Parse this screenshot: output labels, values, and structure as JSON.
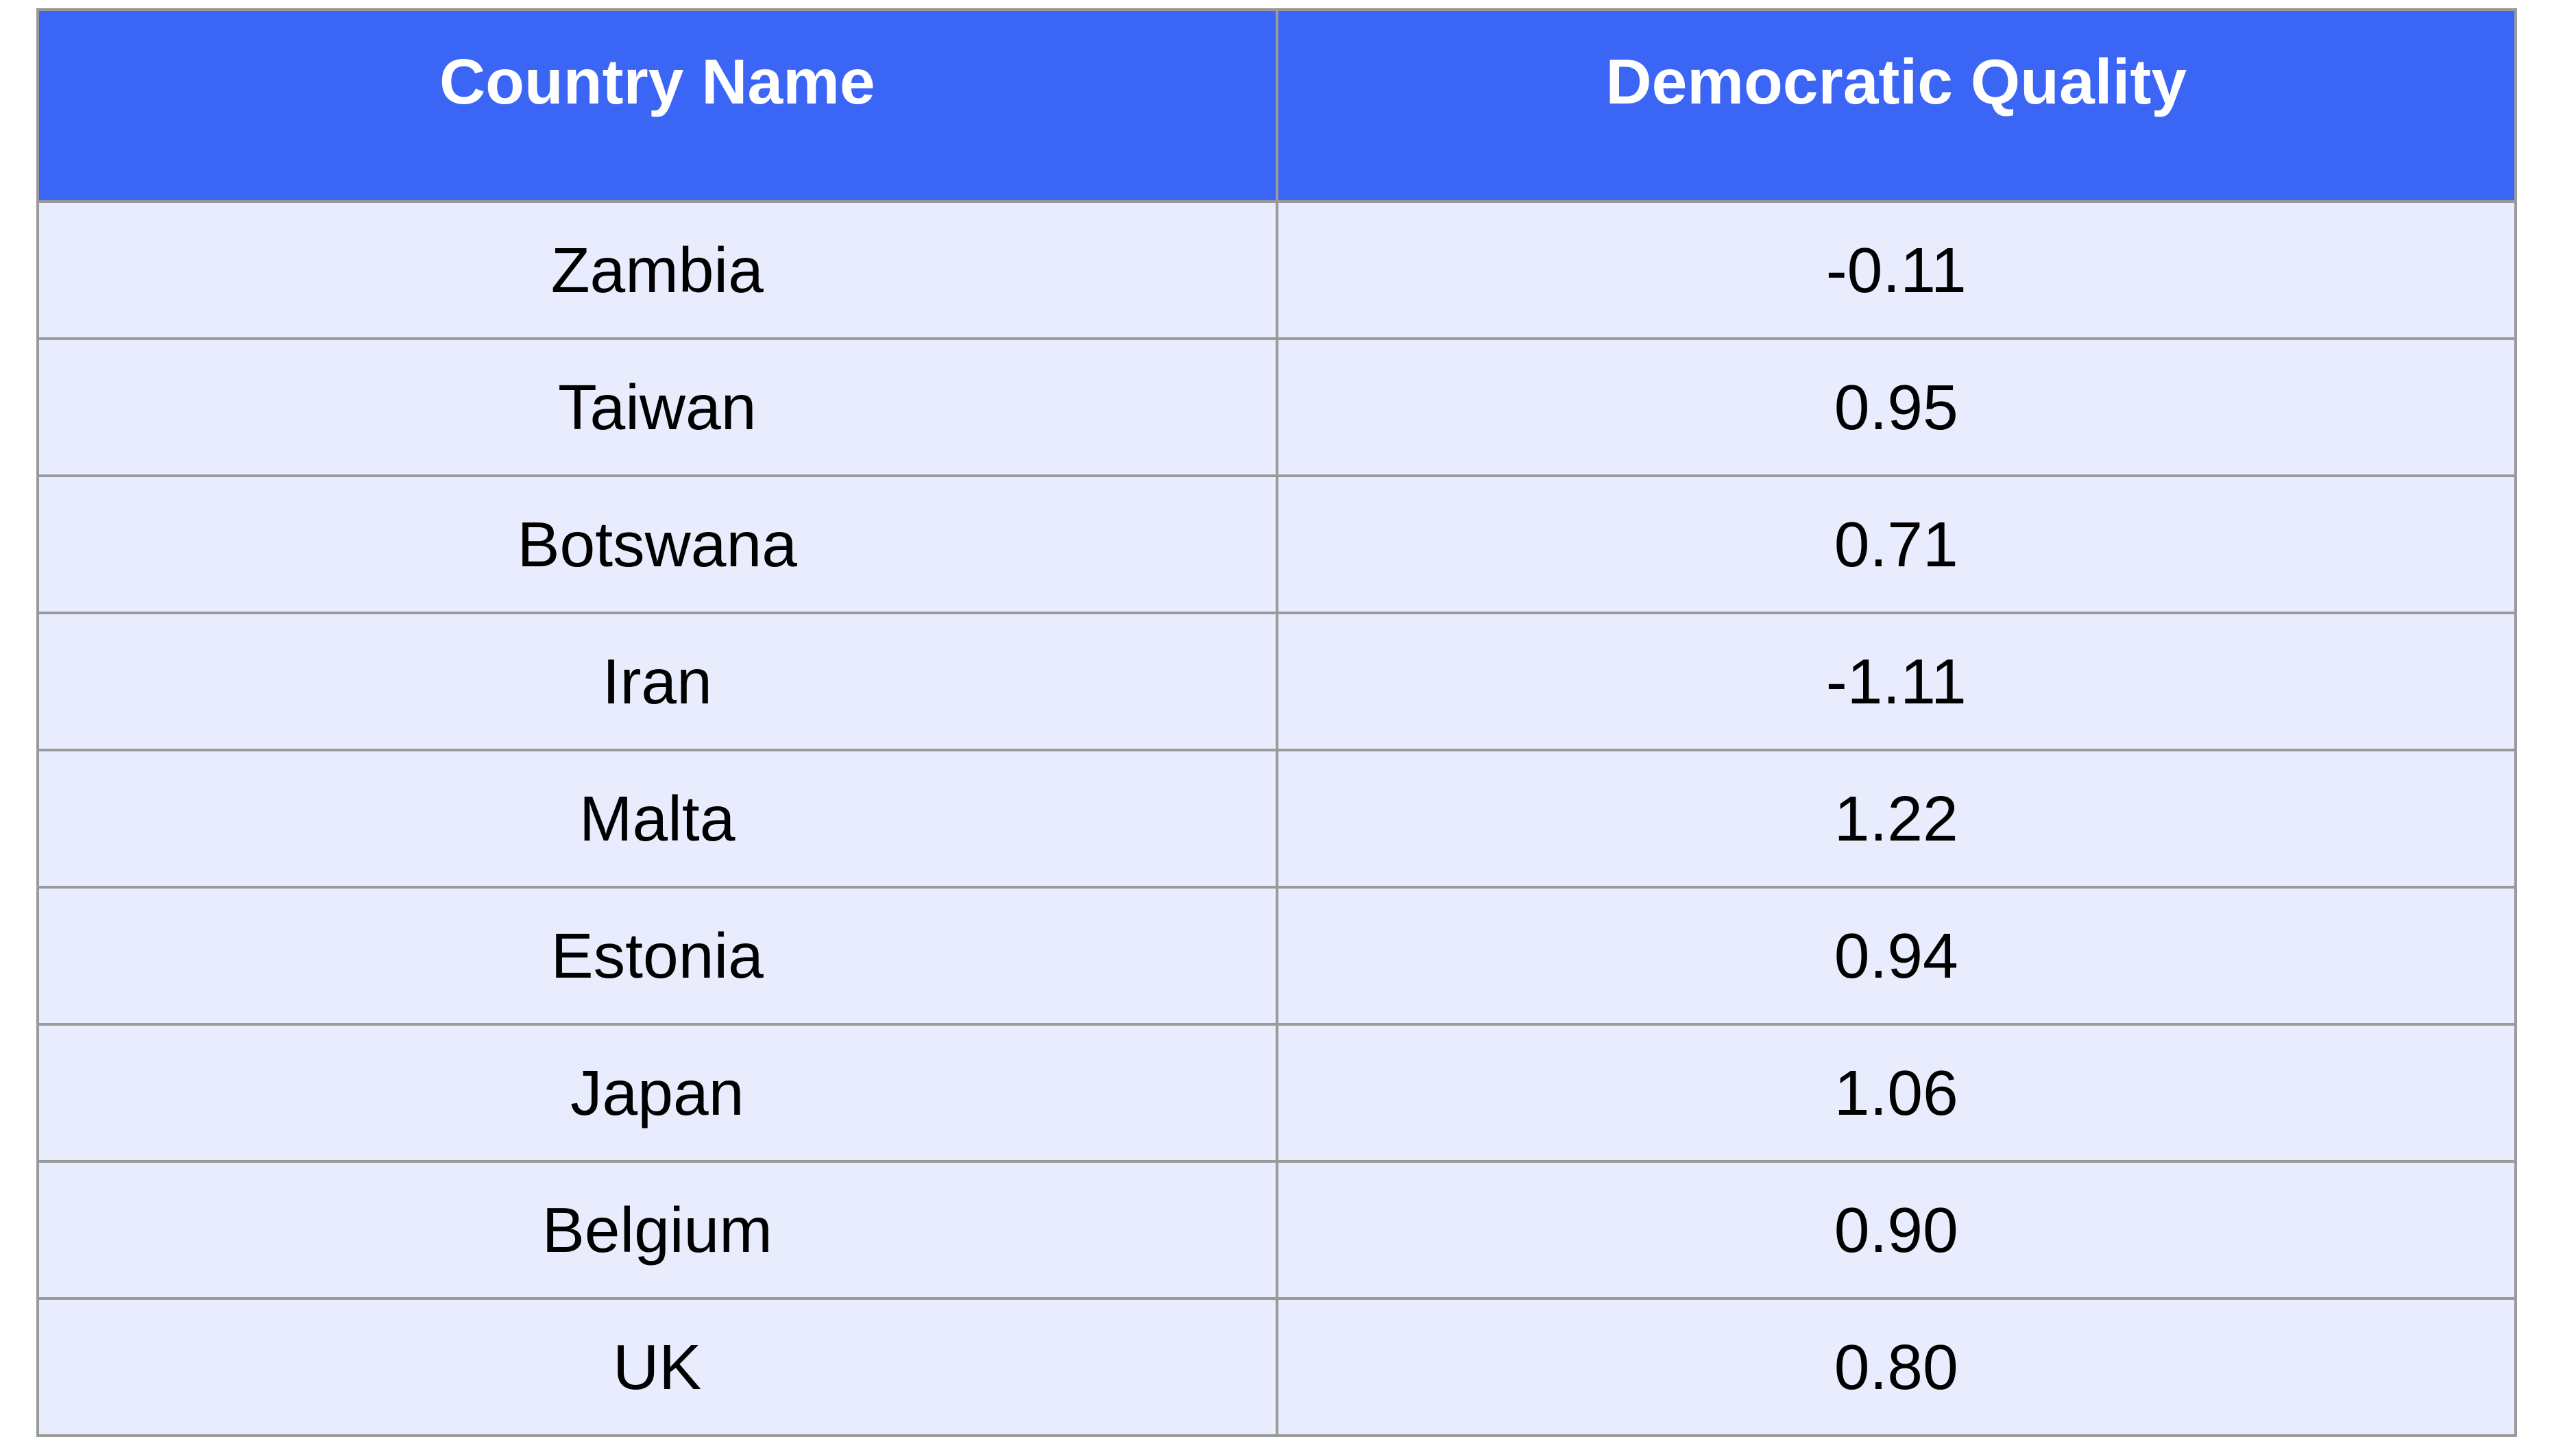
{
  "chart_data": {
    "type": "table",
    "columns": [
      "Country Name",
      "Democratic Quality"
    ],
    "rows": [
      [
        "Zambia",
        "-0.11"
      ],
      [
        "Taiwan",
        "0.95"
      ],
      [
        "Botswana",
        "0.71"
      ],
      [
        "Iran",
        "-1.11"
      ],
      [
        "Malta",
        "1.22"
      ],
      [
        "Estonia",
        "0.94"
      ],
      [
        "Japan",
        "1.06"
      ],
      [
        "Belgium",
        "0.90"
      ],
      [
        "UK",
        "0.80"
      ]
    ],
    "header_color": "#3b65f5",
    "row_color": "#e8ecfc",
    "border_color": "#9a9a9a"
  }
}
